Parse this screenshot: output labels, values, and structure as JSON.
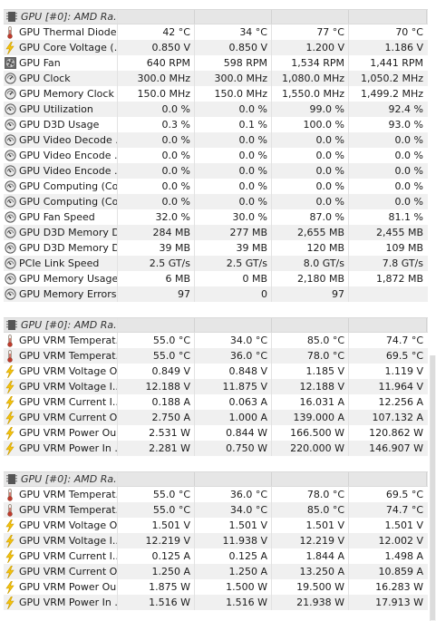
{
  "sections": [
    {
      "header": "GPU [#0]: AMD Ra...",
      "rows": [
        {
          "icon": "thermometer-icon",
          "label": "GPU Thermal Diode",
          "values": [
            "42 °C",
            "34 °C",
            "77 °C",
            "70 °C"
          ]
        },
        {
          "icon": "lightning-icon",
          "label": "GPU Core Voltage (...",
          "values": [
            "0.850 V",
            "0.850 V",
            "1.200 V",
            "1.186 V"
          ]
        },
        {
          "icon": "fan-icon",
          "label": "GPU Fan",
          "values": [
            "640 RPM",
            "598 RPM",
            "1,534 RPM",
            "1,441 RPM"
          ]
        },
        {
          "icon": "clock-icon",
          "label": "GPU Clock",
          "values": [
            "300.0 MHz",
            "300.0 MHz",
            "1,080.0 MHz",
            "1,050.2 MHz"
          ]
        },
        {
          "icon": "clock-icon",
          "label": "GPU Memory Clock",
          "values": [
            "150.0 MHz",
            "150.0 MHz",
            "1,550.0 MHz",
            "1,499.2 MHz"
          ]
        },
        {
          "icon": "gauge-icon",
          "label": "GPU Utilization",
          "values": [
            "0.0 %",
            "0.0 %",
            "99.0 %",
            "92.4 %"
          ]
        },
        {
          "icon": "gauge-icon",
          "label": "GPU D3D Usage",
          "values": [
            "0.3 %",
            "0.1 %",
            "100.0 %",
            "93.0 %"
          ]
        },
        {
          "icon": "gauge-icon",
          "label": "GPU Video Decode ...",
          "values": [
            "0.0 %",
            "0.0 %",
            "0.0 %",
            "0.0 %"
          ]
        },
        {
          "icon": "gauge-icon",
          "label": "GPU Video Encode ...",
          "values": [
            "0.0 %",
            "0.0 %",
            "0.0 %",
            "0.0 %"
          ]
        },
        {
          "icon": "gauge-icon",
          "label": "GPU Video Encode ...",
          "values": [
            "0.0 %",
            "0.0 %",
            "0.0 %",
            "0.0 %"
          ]
        },
        {
          "icon": "gauge-icon",
          "label": "GPU Computing (Co...",
          "values": [
            "0.0 %",
            "0.0 %",
            "0.0 %",
            "0.0 %"
          ]
        },
        {
          "icon": "gauge-icon",
          "label": "GPU Computing (Co...",
          "values": [
            "0.0 %",
            "0.0 %",
            "0.0 %",
            "0.0 %"
          ]
        },
        {
          "icon": "gauge-icon",
          "label": "GPU Fan Speed",
          "values": [
            "32.0 %",
            "30.0 %",
            "87.0 %",
            "81.1 %"
          ]
        },
        {
          "icon": "gauge-icon",
          "label": "GPU D3D Memory D...",
          "values": [
            "284 MB",
            "277 MB",
            "2,655 MB",
            "2,455 MB"
          ]
        },
        {
          "icon": "gauge-icon",
          "label": "GPU D3D Memory D...",
          "values": [
            "39 MB",
            "39 MB",
            "120 MB",
            "109 MB"
          ]
        },
        {
          "icon": "gauge-icon",
          "label": "PCIe Link Speed",
          "values": [
            "2.5 GT/s",
            "2.5 GT/s",
            "8.0 GT/s",
            "7.8 GT/s"
          ]
        },
        {
          "icon": "gauge-icon",
          "label": "GPU Memory Usage",
          "values": [
            "6 MB",
            "0 MB",
            "2,180 MB",
            "1,872 MB"
          ]
        },
        {
          "icon": "gauge-icon",
          "label": "GPU Memory Errors",
          "values": [
            "97",
            "0",
            "97",
            ""
          ]
        }
      ]
    },
    {
      "header": "GPU [#0]: AMD Ra...",
      "rows": [
        {
          "icon": "thermometer-icon",
          "label": "GPU VRM Temperat...",
          "values": [
            "55.0 °C",
            "34.0 °C",
            "85.0 °C",
            "74.7 °C"
          ]
        },
        {
          "icon": "thermometer-icon",
          "label": "GPU VRM Temperat...",
          "values": [
            "55.0 °C",
            "36.0 °C",
            "78.0 °C",
            "69.5 °C"
          ]
        },
        {
          "icon": "lightning-icon",
          "label": "GPU VRM Voltage O...",
          "values": [
            "0.849 V",
            "0.848 V",
            "1.185 V",
            "1.119 V"
          ]
        },
        {
          "icon": "lightning-icon",
          "label": "GPU VRM Voltage I...",
          "values": [
            "12.188 V",
            "11.875 V",
            "12.188 V",
            "11.964 V"
          ]
        },
        {
          "icon": "lightning-icon",
          "label": "GPU VRM Current I...",
          "values": [
            "0.188 A",
            "0.063 A",
            "16.031 A",
            "12.256 A"
          ]
        },
        {
          "icon": "lightning-icon",
          "label": "GPU VRM Current O...",
          "values": [
            "2.750 A",
            "1.000 A",
            "139.000 A",
            "107.132 A"
          ]
        },
        {
          "icon": "lightning-icon",
          "label": "GPU VRM Power Ou...",
          "values": [
            "2.531 W",
            "0.844 W",
            "166.500 W",
            "120.862 W"
          ]
        },
        {
          "icon": "lightning-icon",
          "label": "GPU VRM Power In ...",
          "values": [
            "2.281 W",
            "0.750 W",
            "220.000 W",
            "146.907 W"
          ]
        }
      ]
    },
    {
      "header": "GPU [#0]: AMD Ra...",
      "rows": [
        {
          "icon": "thermometer-icon",
          "label": "GPU VRM Temperat...",
          "values": [
            "55.0 °C",
            "36.0 °C",
            "78.0 °C",
            "69.5 °C"
          ]
        },
        {
          "icon": "thermometer-icon",
          "label": "GPU VRM Temperat...",
          "values": [
            "55.0 °C",
            "34.0 °C",
            "85.0 °C",
            "74.7 °C"
          ]
        },
        {
          "icon": "lightning-icon",
          "label": "GPU VRM Voltage O...",
          "values": [
            "1.501 V",
            "1.501 V",
            "1.501 V",
            "1.501 V"
          ]
        },
        {
          "icon": "lightning-icon",
          "label": "GPU VRM Voltage I...",
          "values": [
            "12.219 V",
            "11.938 V",
            "12.219 V",
            "12.002 V"
          ]
        },
        {
          "icon": "lightning-icon",
          "label": "GPU VRM Current I...",
          "values": [
            "0.125 A",
            "0.125 A",
            "1.844 A",
            "1.498 A"
          ]
        },
        {
          "icon": "lightning-icon",
          "label": "GPU VRM Current O...",
          "values": [
            "1.250 A",
            "1.250 A",
            "13.250 A",
            "10.859 A"
          ]
        },
        {
          "icon": "lightning-icon",
          "label": "GPU VRM Power Ou...",
          "values": [
            "1.875 W",
            "1.500 W",
            "19.500 W",
            "16.283 W"
          ]
        },
        {
          "icon": "lightning-icon",
          "label": "GPU VRM Power In ...",
          "values": [
            "1.516 W",
            "1.516 W",
            "21.938 W",
            "17.913 W"
          ]
        }
      ]
    }
  ]
}
